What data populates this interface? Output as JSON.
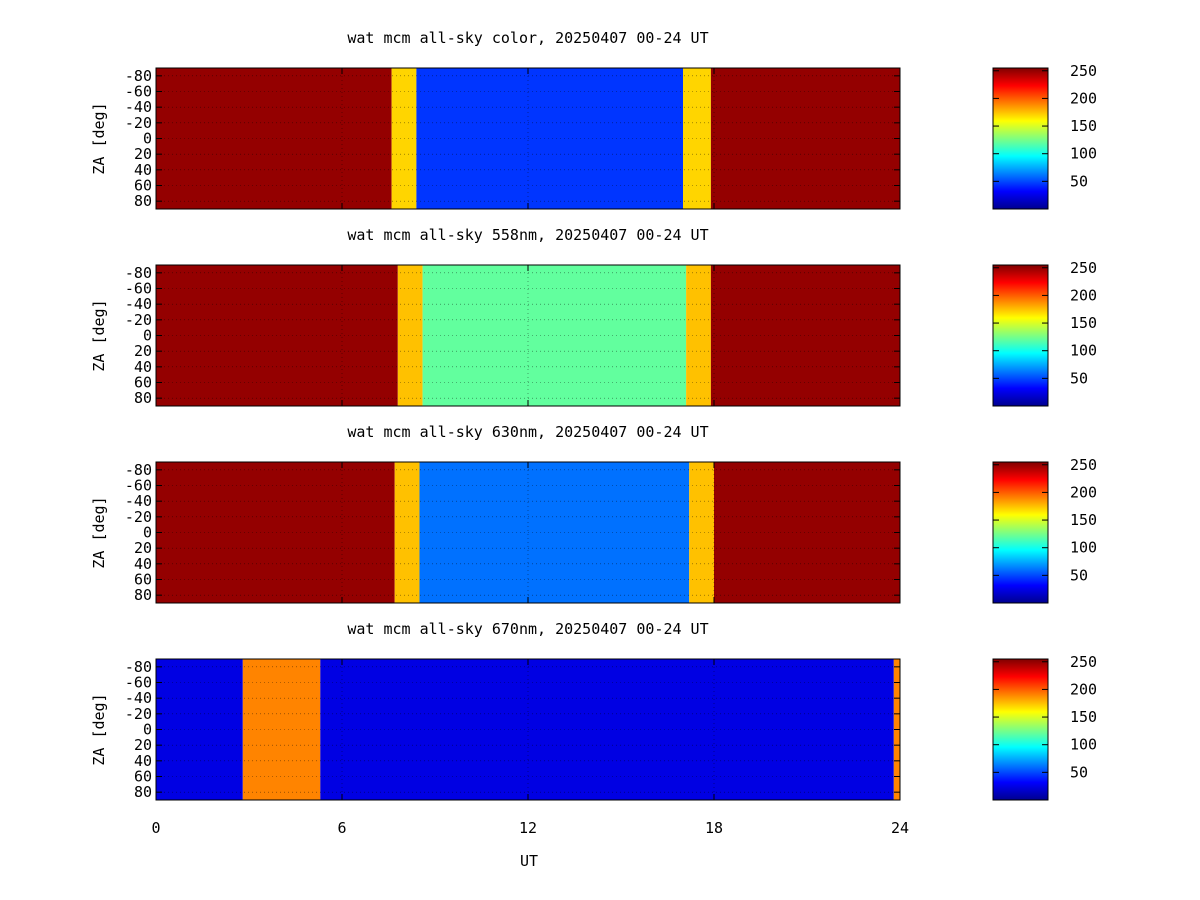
{
  "chart_data": [
    {
      "type": "heatmap",
      "title": "wat mcm all-sky color, 20250407 00-24 UT",
      "ylabel": "ZA [deg]",
      "xlabel": "",
      "xlim": [
        0,
        24
      ],
      "ylim": [
        -90,
        90
      ],
      "x_ticks": [
        "0",
        "6",
        "12",
        "18",
        "24"
      ],
      "y_ticks": [
        "-80",
        "-60",
        "-40",
        "-20",
        "0",
        "20",
        "40",
        "60",
        "80"
      ],
      "colorbar": {
        "min": 0,
        "max": 255,
        "ticks": [
          "50",
          "100",
          "150",
          "200",
          "250"
        ]
      },
      "segments": [
        {
          "x0": 0.0,
          "x1": 7.6,
          "value": 250
        },
        {
          "x0": 7.6,
          "x1": 8.4,
          "value": 170
        },
        {
          "x0": 8.4,
          "x1": 17.0,
          "value": 45
        },
        {
          "x0": 17.0,
          "x1": 17.9,
          "value": 170
        },
        {
          "x0": 17.9,
          "x1": 24.0,
          "value": 250
        }
      ]
    },
    {
      "type": "heatmap",
      "title": "wat mcm all-sky 558nm, 20250407 00-24 UT",
      "ylabel": "ZA [deg]",
      "xlabel": "",
      "xlim": [
        0,
        24
      ],
      "ylim": [
        -90,
        90
      ],
      "x_ticks": [
        "0",
        "6",
        "12",
        "18",
        "24"
      ],
      "y_ticks": [
        "-80",
        "-60",
        "-40",
        "-20",
        "0",
        "20",
        "40",
        "60",
        "80"
      ],
      "colorbar": {
        "min": 0,
        "max": 255,
        "ticks": [
          "50",
          "100",
          "150",
          "200",
          "250"
        ]
      },
      "segments": [
        {
          "x0": 0.0,
          "x1": 7.8,
          "value": 250
        },
        {
          "x0": 7.8,
          "x1": 8.6,
          "value": 175
        },
        {
          "x0": 8.6,
          "x1": 17.1,
          "value": 120
        },
        {
          "x0": 17.1,
          "x1": 17.9,
          "value": 175
        },
        {
          "x0": 17.9,
          "x1": 24.0,
          "value": 250
        }
      ]
    },
    {
      "type": "heatmap",
      "title": "wat mcm all-sky 630nm, 20250407 00-24 UT",
      "ylabel": "ZA [deg]",
      "xlabel": "",
      "xlim": [
        0,
        24
      ],
      "ylim": [
        -90,
        90
      ],
      "x_ticks": [
        "0",
        "6",
        "12",
        "18",
        "24"
      ],
      "y_ticks": [
        "-80",
        "-60",
        "-40",
        "-20",
        "0",
        "20",
        "40",
        "60",
        "80"
      ],
      "colorbar": {
        "min": 0,
        "max": 255,
        "ticks": [
          "50",
          "100",
          "150",
          "200",
          "250"
        ]
      },
      "segments": [
        {
          "x0": 0.0,
          "x1": 7.7,
          "value": 250
        },
        {
          "x0": 7.7,
          "x1": 8.5,
          "value": 175
        },
        {
          "x0": 8.5,
          "x1": 17.2,
          "value": 60
        },
        {
          "x0": 17.2,
          "x1": 18.0,
          "value": 175
        },
        {
          "x0": 18.0,
          "x1": 24.0,
          "value": 250
        }
      ]
    },
    {
      "type": "heatmap",
      "title": "wat mcm all-sky 670nm, 20250407 00-24 UT",
      "ylabel": "ZA [deg]",
      "xlabel": "UT",
      "xlim": [
        0,
        24
      ],
      "ylim": [
        -90,
        90
      ],
      "x_ticks": [
        "0",
        "6",
        "12",
        "18",
        "24"
      ],
      "y_ticks": [
        "-80",
        "-60",
        "-40",
        "-20",
        "0",
        "20",
        "40",
        "60",
        "80"
      ],
      "colorbar": {
        "min": 0,
        "max": 255,
        "ticks": [
          "50",
          "100",
          "150",
          "200",
          "250"
        ]
      },
      "segments": [
        {
          "x0": 0.0,
          "x1": 2.8,
          "value": 25
        },
        {
          "x0": 2.8,
          "x1": 5.3,
          "value": 190
        },
        {
          "x0": 5.3,
          "x1": 23.8,
          "value": 25
        },
        {
          "x0": 23.8,
          "x1": 24.0,
          "value": 190
        }
      ]
    }
  ]
}
